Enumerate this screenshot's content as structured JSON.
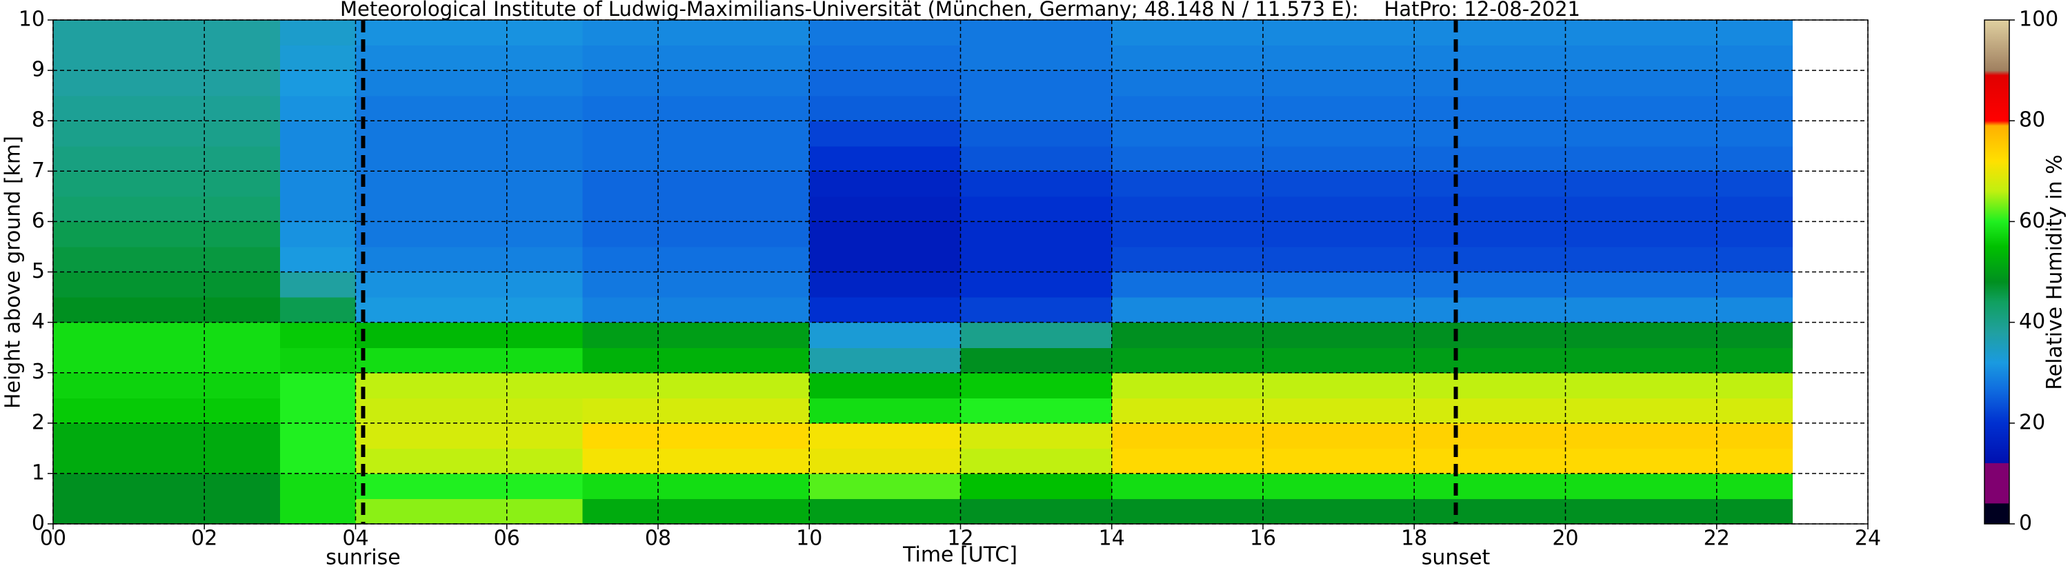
{
  "chart_data": {
    "type": "heatmap",
    "title": "Meteorological Institute of Ludwig-Maximilians-Universität (München, Germany; 48.148 N / 11.573 E):    HatPro: 12-08-2021",
    "xlabel": "Time [UTC]",
    "ylabel": "Height above ground [km]",
    "colorbar_label": "Relative Humidity in %",
    "x": [
      0.5,
      1.5,
      2.5,
      3.5,
      4.5,
      5.5,
      6.5,
      7.5,
      8.5,
      9.5,
      10.5,
      11.5,
      12.5,
      13.5,
      14.5,
      15.5,
      16.5,
      17.5,
      18.5,
      19.5,
      20.5,
      21.5,
      22.5
    ],
    "y": [
      0.25,
      0.75,
      1.25,
      1.75,
      2.25,
      2.75,
      3.25,
      3.75,
      4.25,
      4.75,
      5.25,
      5.75,
      6.25,
      6.75,
      7.25,
      7.75,
      8.25,
      8.75,
      9.25,
      9.75
    ],
    "values": [
      [
        48,
        48,
        48,
        58,
        64,
        64,
        64,
        52,
        52,
        52,
        50,
        50,
        48,
        48,
        48,
        48,
        48,
        48,
        48,
        48,
        48,
        48,
        48
      ],
      [
        48,
        48,
        48,
        58,
        60,
        60,
        60,
        58,
        58,
        58,
        62,
        62,
        55,
        55,
        58,
        58,
        58,
        58,
        58,
        58,
        58,
        58,
        58
      ],
      [
        52,
        52,
        52,
        60,
        66,
        66,
        66,
        71,
        71,
        71,
        70,
        70,
        66,
        66,
        73,
        73,
        73,
        73,
        73,
        73,
        73,
        73,
        73
      ],
      [
        52,
        52,
        52,
        60,
        68,
        68,
        68,
        73,
        73,
        73,
        71,
        71,
        68,
        68,
        74,
        74,
        74,
        74,
        74,
        74,
        74,
        74,
        74
      ],
      [
        56,
        56,
        56,
        60,
        67,
        67,
        67,
        68,
        68,
        68,
        58,
        58,
        60,
        60,
        68,
        68,
        68,
        68,
        68,
        68,
        68,
        68,
        68
      ],
      [
        57,
        57,
        57,
        60,
        66,
        66,
        66,
        66,
        66,
        66,
        54,
        54,
        56,
        56,
        66,
        66,
        66,
        66,
        66,
        66,
        66,
        66,
        66
      ],
      [
        58,
        58,
        58,
        57,
        58,
        58,
        58,
        53,
        53,
        53,
        37,
        37,
        48,
        48,
        50,
        50,
        50,
        50,
        50,
        50,
        50,
        50,
        50
      ],
      [
        58,
        58,
        58,
        56,
        54,
        54,
        54,
        50,
        50,
        50,
        33,
        33,
        40,
        40,
        48,
        48,
        48,
        48,
        48,
        48,
        48,
        48,
        48
      ],
      [
        48,
        48,
        48,
        45,
        32,
        32,
        32,
        29,
        29,
        29,
        20,
        20,
        22,
        22,
        30,
        30,
        30,
        30,
        30,
        30,
        30,
        30,
        30
      ],
      [
        47,
        47,
        47,
        38,
        31,
        31,
        31,
        28,
        28,
        28,
        17,
        17,
        20,
        20,
        27,
        27,
        27,
        27,
        27,
        27,
        27,
        27,
        27
      ],
      [
        46,
        46,
        46,
        32,
        29,
        29,
        29,
        27,
        27,
        27,
        15,
        15,
        19,
        19,
        23,
        23,
        23,
        23,
        23,
        23,
        23,
        23,
        23
      ],
      [
        45,
        45,
        45,
        31,
        28,
        28,
        28,
        26,
        26,
        26,
        15,
        15,
        19,
        19,
        22,
        22,
        22,
        22,
        22,
        22,
        22,
        22,
        22
      ],
      [
        43,
        43,
        43,
        30,
        28,
        28,
        28,
        26,
        26,
        26,
        16,
        16,
        20,
        20,
        22,
        22,
        22,
        22,
        22,
        22,
        22,
        22,
        22
      ],
      [
        42,
        42,
        42,
        30,
        28,
        28,
        28,
        26,
        26,
        26,
        17,
        17,
        21,
        21,
        23,
        23,
        23,
        23,
        23,
        23,
        23,
        23,
        23
      ],
      [
        41,
        41,
        41,
        30,
        28,
        28,
        28,
        27,
        27,
        27,
        20,
        20,
        24,
        24,
        26,
        26,
        26,
        26,
        26,
        26,
        26,
        26,
        26
      ],
      [
        40,
        40,
        40,
        30,
        28,
        28,
        28,
        27,
        27,
        27,
        22,
        22,
        25,
        25,
        27,
        27,
        27,
        27,
        27,
        27,
        27,
        27,
        27
      ],
      [
        39,
        39,
        39,
        31,
        28,
        28,
        28,
        27,
        27,
        27,
        25,
        25,
        27,
        27,
        27,
        27,
        27,
        27,
        27,
        27,
        27,
        27,
        27
      ],
      [
        38,
        38,
        38,
        32,
        29,
        29,
        29,
        28,
        28,
        28,
        26,
        26,
        27,
        27,
        28,
        28,
        28,
        28,
        28,
        28,
        28,
        28,
        28
      ],
      [
        38,
        38,
        38,
        33,
        30,
        30,
        30,
        29,
        29,
        29,
        27,
        27,
        28,
        28,
        29,
        29,
        29,
        29,
        29,
        29,
        29,
        29,
        29
      ],
      [
        38,
        38,
        38,
        34,
        31,
        31,
        31,
        30,
        30,
        30,
        28,
        28,
        28,
        28,
        30,
        30,
        30,
        30,
        30,
        30,
        30,
        30,
        30
      ]
    ],
    "xlim": [
      0,
      24
    ],
    "ylim": [
      0,
      10
    ],
    "clim": [
      0,
      100
    ],
    "xticks": [
      {
        "value": 0,
        "label": "00"
      },
      {
        "value": 2,
        "label": "02"
      },
      {
        "value": 4,
        "label": "04"
      },
      {
        "value": 6,
        "label": "06"
      },
      {
        "value": 8,
        "label": "08"
      },
      10,
      12,
      14,
      16,
      18,
      20,
      22,
      24
    ],
    "yticks": [
      0,
      1,
      2,
      3,
      4,
      5,
      6,
      7,
      8,
      9,
      10
    ],
    "cticks": [
      0,
      20,
      40,
      60,
      80,
      100
    ],
    "grid": true,
    "colorscale": [
      [
        0,
        "#000020"
      ],
      [
        4,
        "#000020"
      ],
      [
        4.1,
        "#800070"
      ],
      [
        12,
        "#800070"
      ],
      [
        12.1,
        "#0010b0"
      ],
      [
        20,
        "#0030d0"
      ],
      [
        27,
        "#1070e0"
      ],
      [
        32,
        "#1a9ae0"
      ],
      [
        38,
        "#20a0a0"
      ],
      [
        44,
        "#10a060"
      ],
      [
        48,
        "#009020"
      ],
      [
        55,
        "#00c000"
      ],
      [
        60,
        "#20f020"
      ],
      [
        66,
        "#c0f010"
      ],
      [
        72,
        "#ffe000"
      ],
      [
        79,
        "#ffb000"
      ],
      [
        80,
        "#ff0000"
      ],
      [
        89,
        "#e00000"
      ],
      [
        90,
        "#a08060"
      ],
      [
        100,
        "#e0d0a0"
      ]
    ],
    "annotations": [
      {
        "x": 4.1,
        "label": "sunrise"
      },
      {
        "x": 18.55,
        "label": "sunset"
      }
    ]
  }
}
